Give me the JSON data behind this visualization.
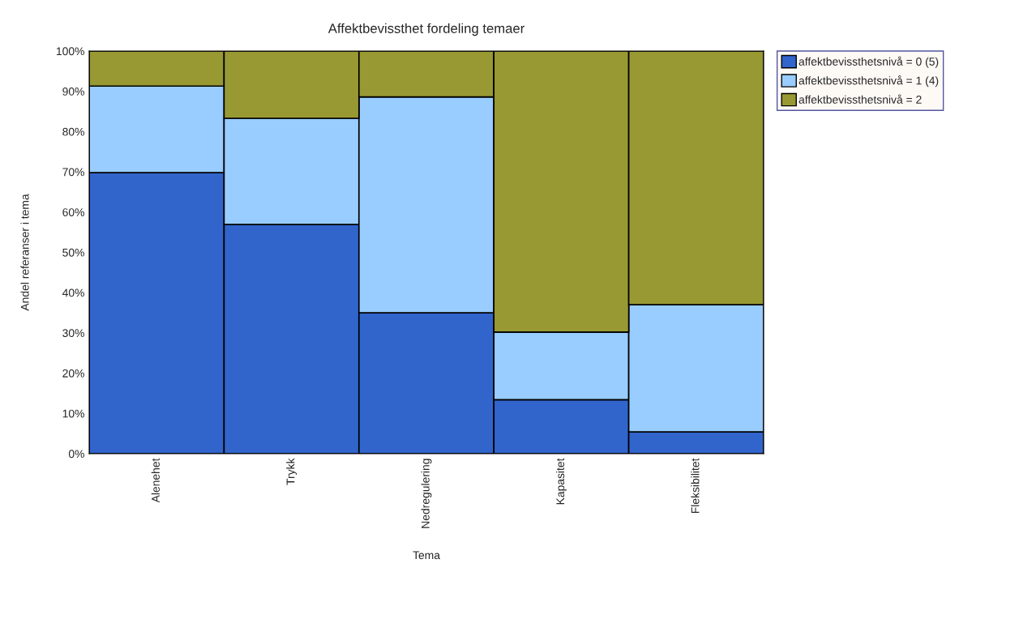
{
  "chart_data": {
    "type": "bar",
    "stacked": true,
    "title": "Affektbevissthet fordeling temaer",
    "xlabel": "Tema",
    "ylabel": "Andel referanser i tema",
    "categories": [
      "Alenehet",
      "Trykk",
      "Nedregulering",
      "Kapasitet",
      "Fleksibilitet"
    ],
    "series": [
      {
        "name": "affektbevissthetsnivå = 0 (5)",
        "color": "#3165cc",
        "values": [
          69.8,
          56.9,
          35.0,
          13.4,
          5.4
        ]
      },
      {
        "name": "affektbevissthetsnivå = 1 (4)",
        "color": "#99ccff",
        "values": [
          21.5,
          26.4,
          53.6,
          16.8,
          31.6
        ]
      },
      {
        "name": "affektbevissthetsnivå = 2",
        "color": "#999933",
        "values": [
          8.7,
          16.7,
          11.4,
          69.8,
          63.0
        ]
      }
    ],
    "ylim": [
      0,
      100
    ],
    "yticks": [
      {
        "value": 0,
        "label": "0%"
      },
      {
        "value": 10,
        "label": "10%"
      },
      {
        "value": 20,
        "label": "20%"
      },
      {
        "value": 30,
        "label": "30%"
      },
      {
        "value": 40,
        "label": "40%"
      },
      {
        "value": 50,
        "label": "50%"
      },
      {
        "value": 60,
        "label": "60%"
      },
      {
        "value": 70,
        "label": "70%"
      },
      {
        "value": 80,
        "label": "80%"
      },
      {
        "value": 90,
        "label": "90%"
      },
      {
        "value": 100,
        "label": "100%"
      }
    ],
    "legend": "right"
  }
}
